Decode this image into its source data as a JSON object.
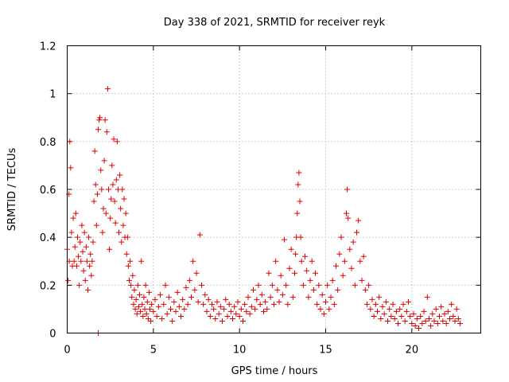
{
  "chart_data": {
    "type": "scatter",
    "title": "Day 338 of 2021, SRMTID for receiver reyk",
    "xlabel": "GPS time / hours",
    "ylabel": "SRMTID / TECUs",
    "xlim": [
      0,
      24
    ],
    "ylim": [
      0,
      1.2
    ],
    "xticks": [
      0,
      5,
      10,
      15,
      20
    ],
    "xtick_labels": [
      "0",
      "5",
      "10",
      "15",
      "20"
    ],
    "yticks": [
      0,
      0.2,
      0.4,
      0.6,
      0.8,
      1.0,
      1.2
    ],
    "ytick_labels": [
      "0",
      "0.2",
      "0.4",
      "0.6",
      "0.8",
      "1",
      "1.2"
    ],
    "grid": true,
    "marker": "+",
    "color": "#e00000",
    "series": [
      {
        "name": "reyk",
        "points": [
          [
            0.0,
            0.35
          ],
          [
            0.05,
            0.22
          ],
          [
            0.1,
            0.58
          ],
          [
            0.12,
            0.3
          ],
          [
            0.15,
            0.8
          ],
          [
            0.2,
            0.69
          ],
          [
            0.25,
            0.42
          ],
          [
            0.3,
            0.28
          ],
          [
            0.35,
            0.48
          ],
          [
            0.4,
            0.3
          ],
          [
            0.45,
            0.36
          ],
          [
            0.5,
            0.5
          ],
          [
            0.55,
            0.28
          ],
          [
            0.6,
            0.4
          ],
          [
            0.65,
            0.32
          ],
          [
            0.7,
            0.2
          ],
          [
            0.75,
            0.38
          ],
          [
            0.8,
            0.3
          ],
          [
            0.85,
            0.45
          ],
          [
            0.9,
            0.34
          ],
          [
            0.95,
            0.26
          ],
          [
            1.0,
            0.42
          ],
          [
            1.05,
            0.22
          ],
          [
            1.1,
            0.36
          ],
          [
            1.15,
            0.3
          ],
          [
            1.2,
            0.18
          ],
          [
            1.25,
            0.4
          ],
          [
            1.3,
            0.28
          ],
          [
            1.35,
            0.33
          ],
          [
            1.4,
            0.24
          ],
          [
            1.45,
            0.3
          ],
          [
            1.5,
            0.38
          ],
          [
            1.55,
            0.55
          ],
          [
            1.6,
            0.76
          ],
          [
            1.65,
            0.62
          ],
          [
            1.7,
            0.45
          ],
          [
            1.75,
            0.58
          ],
          [
            1.8,
            0.85
          ],
          [
            1.85,
            0.89
          ],
          [
            1.9,
            0.9
          ],
          [
            1.95,
            0.68
          ],
          [
            2.0,
            0.6
          ],
          [
            2.05,
            0.42
          ],
          [
            2.1,
            0.52
          ],
          [
            2.15,
            0.72
          ],
          [
            2.2,
            0.89
          ],
          [
            2.25,
            0.5
          ],
          [
            2.3,
            0.84
          ],
          [
            2.35,
            1.02
          ],
          [
            2.4,
            0.6
          ],
          [
            2.45,
            0.35
          ],
          [
            2.5,
            0.48
          ],
          [
            2.55,
            0.56
          ],
          [
            2.6,
            0.7
          ],
          [
            2.65,
            0.62
          ],
          [
            2.7,
            0.81
          ],
          [
            2.75,
            0.55
          ],
          [
            2.8,
            0.46
          ],
          [
            2.85,
            0.64
          ],
          [
            2.9,
            0.8
          ],
          [
            2.95,
            0.6
          ],
          [
            3.0,
            0.42
          ],
          [
            3.05,
            0.66
          ],
          [
            3.1,
            0.52
          ],
          [
            3.15,
            0.38
          ],
          [
            3.2,
            0.6
          ],
          [
            3.25,
            0.45
          ],
          [
            3.3,
            0.56
          ],
          [
            3.35,
            0.4
          ],
          [
            3.4,
            0.5
          ],
          [
            3.45,
            0.33
          ],
          [
            3.5,
            0.4
          ],
          [
            3.55,
            0.28
          ],
          [
            3.6,
            0.22
          ],
          [
            3.65,
            0.3
          ],
          [
            3.7,
            0.2
          ],
          [
            3.75,
            0.15
          ],
          [
            3.8,
            0.24
          ],
          [
            3.85,
            0.12
          ],
          [
            3.9,
            0.18
          ],
          [
            3.95,
            0.1
          ],
          [
            4.0,
            0.14
          ],
          [
            4.05,
            0.08
          ],
          [
            4.1,
            0.2
          ],
          [
            4.15,
            0.11
          ],
          [
            4.2,
            0.16
          ],
          [
            4.25,
            0.09
          ],
          [
            4.3,
            0.3
          ],
          [
            4.35,
            0.12
          ],
          [
            4.4,
            0.07
          ],
          [
            4.45,
            0.15
          ],
          [
            4.5,
            0.1
          ],
          [
            4.55,
            0.2
          ],
          [
            4.6,
            0.08
          ],
          [
            4.65,
            0.13
          ],
          [
            4.7,
            0.06
          ],
          [
            4.75,
            0.17
          ],
          [
            4.8,
            0.1
          ],
          [
            4.85,
            0.05
          ],
          [
            4.9,
            0.12
          ],
          [
            5.0,
            0.09
          ],
          [
            5.1,
            0.14
          ],
          [
            5.2,
            0.07
          ],
          [
            5.3,
            0.11
          ],
          [
            5.4,
            0.16
          ],
          [
            5.5,
            0.06
          ],
          [
            5.6,
            0.12
          ],
          [
            5.7,
            0.2
          ],
          [
            5.8,
            0.08
          ],
          [
            5.9,
            0.15
          ],
          [
            6.0,
            0.1
          ],
          [
            6.1,
            0.05
          ],
          [
            6.2,
            0.13
          ],
          [
            6.3,
            0.09
          ],
          [
            6.4,
            0.17
          ],
          [
            6.5,
            0.11
          ],
          [
            6.6,
            0.07
          ],
          [
            6.7,
            0.14
          ],
          [
            6.8,
            0.1
          ],
          [
            6.9,
            0.19
          ],
          [
            7.0,
            0.12
          ],
          [
            7.1,
            0.22
          ],
          [
            7.2,
            0.15
          ],
          [
            7.3,
            0.3
          ],
          [
            7.4,
            0.18
          ],
          [
            7.5,
            0.25
          ],
          [
            7.6,
            0.13
          ],
          [
            7.7,
            0.41
          ],
          [
            7.8,
            0.2
          ],
          [
            7.9,
            0.12
          ],
          [
            8.0,
            0.16
          ],
          [
            8.1,
            0.09
          ],
          [
            8.2,
            0.14
          ],
          [
            8.3,
            0.07
          ],
          [
            8.4,
            0.12
          ],
          [
            8.5,
            0.1
          ],
          [
            8.6,
            0.06
          ],
          [
            8.7,
            0.13
          ],
          [
            8.8,
            0.08
          ],
          [
            8.9,
            0.11
          ],
          [
            9.0,
            0.05
          ],
          [
            9.1,
            0.1
          ],
          [
            9.2,
            0.14
          ],
          [
            9.3,
            0.07
          ],
          [
            9.4,
            0.12
          ],
          [
            9.5,
            0.09
          ],
          [
            9.6,
            0.06
          ],
          [
            9.7,
            0.11
          ],
          [
            9.8,
            0.08
          ],
          [
            9.9,
            0.13
          ],
          [
            10.0,
            0.07
          ],
          [
            10.1,
            0.1
          ],
          [
            10.2,
            0.05
          ],
          [
            10.3,
            0.12
          ],
          [
            10.4,
            0.09
          ],
          [
            10.5,
            0.15
          ],
          [
            10.6,
            0.08
          ],
          [
            10.7,
            0.11
          ],
          [
            10.8,
            0.18
          ],
          [
            10.9,
            0.1
          ],
          [
            11.0,
            0.14
          ],
          [
            11.1,
            0.2
          ],
          [
            11.2,
            0.12
          ],
          [
            11.3,
            0.16
          ],
          [
            11.4,
            0.09
          ],
          [
            11.5,
            0.13
          ],
          [
            11.6,
            0.1
          ],
          [
            11.7,
            0.25
          ],
          [
            11.8,
            0.15
          ],
          [
            11.9,
            0.2
          ],
          [
            12.0,
            0.12
          ],
          [
            12.1,
            0.3
          ],
          [
            12.2,
            0.18
          ],
          [
            12.3,
            0.13
          ],
          [
            12.4,
            0.24
          ],
          [
            12.5,
            0.16
          ],
          [
            12.6,
            0.39
          ],
          [
            12.7,
            0.2
          ],
          [
            12.8,
            0.12
          ],
          [
            12.9,
            0.27
          ],
          [
            13.0,
            0.35
          ],
          [
            13.1,
            0.15
          ],
          [
            13.2,
            0.25
          ],
          [
            13.25,
            0.33
          ],
          [
            13.3,
            0.4
          ],
          [
            13.35,
            0.5
          ],
          [
            13.4,
            0.62
          ],
          [
            13.45,
            0.67
          ],
          [
            13.5,
            0.55
          ],
          [
            13.55,
            0.4
          ],
          [
            13.6,
            0.3
          ],
          [
            13.7,
            0.2
          ],
          [
            13.8,
            0.32
          ],
          [
            13.9,
            0.26
          ],
          [
            14.0,
            0.15
          ],
          [
            14.1,
            0.22
          ],
          [
            14.2,
            0.3
          ],
          [
            14.3,
            0.18
          ],
          [
            14.4,
            0.25
          ],
          [
            14.5,
            0.12
          ],
          [
            14.6,
            0.2
          ],
          [
            14.7,
            0.1
          ],
          [
            14.8,
            0.16
          ],
          [
            14.9,
            0.08
          ],
          [
            15.0,
            0.13
          ],
          [
            15.1,
            0.2
          ],
          [
            15.2,
            0.1
          ],
          [
            15.3,
            0.15
          ],
          [
            15.4,
            0.22
          ],
          [
            15.5,
            0.12
          ],
          [
            15.6,
            0.28
          ],
          [
            15.7,
            0.18
          ],
          [
            15.8,
            0.33
          ],
          [
            15.9,
            0.4
          ],
          [
            16.0,
            0.24
          ],
          [
            16.1,
            0.3
          ],
          [
            16.2,
            0.5
          ],
          [
            16.25,
            0.6
          ],
          [
            16.3,
            0.48
          ],
          [
            16.4,
            0.35
          ],
          [
            16.5,
            0.27
          ],
          [
            16.6,
            0.38
          ],
          [
            16.7,
            0.2
          ],
          [
            16.8,
            0.42
          ],
          [
            16.9,
            0.47
          ],
          [
            17.0,
            0.3
          ],
          [
            17.1,
            0.22
          ],
          [
            17.2,
            0.32
          ],
          [
            17.3,
            0.18
          ],
          [
            17.4,
            0.12
          ],
          [
            17.5,
            0.2
          ],
          [
            17.6,
            0.1
          ],
          [
            17.7,
            0.14
          ],
          [
            17.8,
            0.07
          ],
          [
            17.9,
            0.12
          ],
          [
            18.0,
            0.09
          ],
          [
            18.1,
            0.15
          ],
          [
            18.2,
            0.06
          ],
          [
            18.3,
            0.11
          ],
          [
            18.4,
            0.08
          ],
          [
            18.5,
            0.13
          ],
          [
            18.6,
            0.05
          ],
          [
            18.7,
            0.1
          ],
          [
            18.8,
            0.07
          ],
          [
            18.9,
            0.12
          ],
          [
            19.0,
            0.06
          ],
          [
            19.1,
            0.09
          ],
          [
            19.2,
            0.04
          ],
          [
            19.3,
            0.1
          ],
          [
            19.4,
            0.07
          ],
          [
            19.5,
            0.12
          ],
          [
            19.6,
            0.05
          ],
          [
            19.7,
            0.09
          ],
          [
            19.8,
            0.13
          ],
          [
            19.9,
            0.07
          ],
          [
            20.0,
            0.04
          ],
          [
            20.1,
            0.08
          ],
          [
            20.2,
            0.03
          ],
          [
            20.3,
            0.06
          ],
          [
            20.4,
            0.02
          ],
          [
            20.5,
            0.07
          ],
          [
            20.6,
            0.04
          ],
          [
            20.7,
            0.09
          ],
          [
            20.8,
            0.05
          ],
          [
            20.9,
            0.15
          ],
          [
            21.0,
            0.06
          ],
          [
            21.1,
            0.03
          ],
          [
            21.2,
            0.08
          ],
          [
            21.3,
            0.05
          ],
          [
            21.4,
            0.1
          ],
          [
            21.5,
            0.04
          ],
          [
            21.6,
            0.07
          ],
          [
            21.7,
            0.11
          ],
          [
            21.8,
            0.05
          ],
          [
            21.9,
            0.08
          ],
          [
            22.0,
            0.04
          ],
          [
            22.1,
            0.09
          ],
          [
            22.2,
            0.06
          ],
          [
            22.3,
            0.12
          ],
          [
            22.4,
            0.07
          ],
          [
            22.5,
            0.05
          ],
          [
            22.6,
            0.1
          ],
          [
            22.7,
            0.06
          ],
          [
            22.8,
            0.04
          ],
          [
            1.8,
            0.0
          ]
        ]
      }
    ]
  }
}
